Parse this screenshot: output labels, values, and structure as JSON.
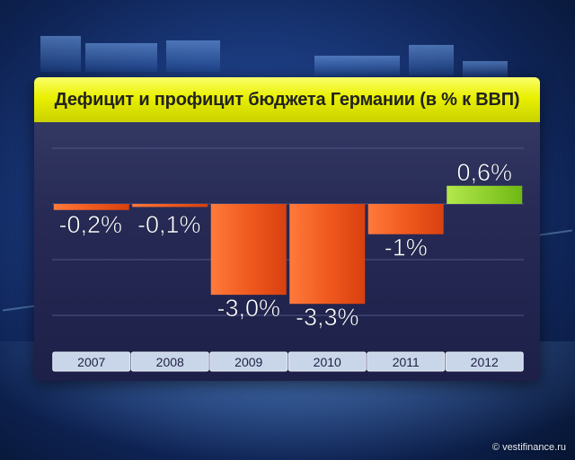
{
  "chart_data": {
    "type": "bar",
    "title": "Дефицит и профицит бюджета Германии (в % к ВВП)",
    "xlabel": "",
    "ylabel": "",
    "categories": [
      "2007",
      "2008",
      "2009",
      "2010",
      "2011",
      "2012"
    ],
    "values": [
      -0.2,
      -0.1,
      -3.0,
      -3.3,
      -1.0,
      0.6
    ],
    "data_labels": [
      "-0,2%",
      "-0,1%",
      "-3,0%",
      "-3,3%",
      "-1%",
      "0,6%"
    ],
    "ylim": [
      -3.3,
      0.6
    ],
    "grid": true,
    "colors": {
      "negative": "#f05a1e",
      "positive": "#8fd12a",
      "title_bg": "#e9f000",
      "panel": "#262a55"
    }
  },
  "watermark": "© vestifinance.ru"
}
